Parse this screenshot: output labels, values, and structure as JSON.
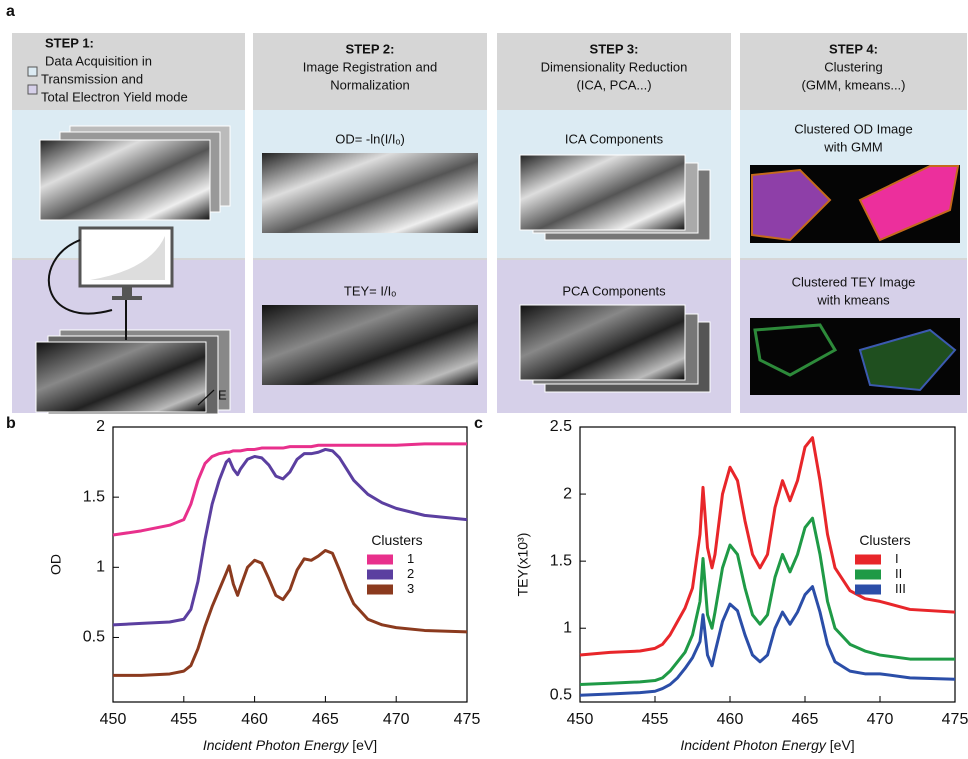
{
  "panel_labels": [
    "a",
    "b",
    "c"
  ],
  "energy_label": "E",
  "steps": [
    {
      "title": "STEP 1:",
      "lines": [
        "Data Acquisition in",
        "Transmission and",
        "Total Electron Yield mode"
      ],
      "top": [],
      "bottom": []
    },
    {
      "title": "STEP 2:",
      "lines": [
        "Image Registration and",
        "Normalization"
      ],
      "top": [
        "OD= -ln(I/Iₒ)"
      ],
      "bottom": [
        "TEY= I/Iₒ"
      ]
    },
    {
      "title": "STEP 3:",
      "lines": [
        "Dimensionality Reduction",
        "(ICA, PCA...)"
      ],
      "top": [
        "ICA Components"
      ],
      "bottom": [
        "PCA Components"
      ]
    },
    {
      "title": "STEP 4:",
      "lines": [
        "Clustering",
        "(GMM, kmeans...)"
      ],
      "top": [
        "Clustered OD Image",
        "with GMM"
      ],
      "bottom": [
        "Clustered TEY Image",
        "with kmeans"
      ]
    }
  ],
  "chart_data": [
    {
      "type": "line",
      "xlabel": "Incident Photon Energy",
      "xunit": "[eV]",
      "ylabel": "OD",
      "xlim": [
        450,
        475
      ],
      "xticks": [
        450,
        455,
        460,
        465,
        470,
        475
      ],
      "ylim": [
        0.04,
        2.0
      ],
      "yticks": [
        0.5,
        1.0,
        1.5,
        2.0
      ],
      "legend_title": "Clusters",
      "legend_loc": "center right",
      "x": [
        450,
        452,
        454,
        455,
        455.5,
        456,
        456.5,
        457,
        457.5,
        458,
        458.2,
        458.5,
        458.8,
        459,
        459.5,
        460,
        460.5,
        461,
        461.5,
        462,
        462.5,
        463,
        463.5,
        464,
        464.5,
        465,
        465.5,
        466,
        466.5,
        467,
        468,
        469,
        470,
        472,
        475
      ],
      "series": [
        {
          "name": "1",
          "color": "#e8308c",
          "values": [
            1.23,
            1.26,
            1.3,
            1.34,
            1.45,
            1.62,
            1.74,
            1.79,
            1.81,
            1.82,
            1.82,
            1.83,
            1.83,
            1.83,
            1.84,
            1.84,
            1.85,
            1.85,
            1.85,
            1.85,
            1.86,
            1.86,
            1.86,
            1.86,
            1.87,
            1.87,
            1.87,
            1.87,
            1.87,
            1.87,
            1.87,
            1.87,
            1.87,
            1.88,
            1.88
          ]
        },
        {
          "name": "2",
          "color": "#5b3fa0",
          "values": [
            0.59,
            0.6,
            0.61,
            0.63,
            0.7,
            0.9,
            1.2,
            1.45,
            1.62,
            1.75,
            1.77,
            1.7,
            1.66,
            1.7,
            1.77,
            1.79,
            1.78,
            1.73,
            1.65,
            1.63,
            1.68,
            1.77,
            1.81,
            1.81,
            1.82,
            1.84,
            1.83,
            1.78,
            1.7,
            1.62,
            1.52,
            1.46,
            1.42,
            1.37,
            1.34
          ]
        },
        {
          "name": "3",
          "color": "#8b3a1e",
          "values": [
            0.23,
            0.23,
            0.24,
            0.26,
            0.3,
            0.42,
            0.58,
            0.72,
            0.84,
            0.96,
            1.01,
            0.88,
            0.8,
            0.86,
            1.0,
            1.05,
            1.03,
            0.92,
            0.8,
            0.77,
            0.84,
            0.98,
            1.06,
            1.05,
            1.08,
            1.12,
            1.1,
            0.98,
            0.85,
            0.74,
            0.63,
            0.59,
            0.57,
            0.55,
            0.54
          ]
        }
      ]
    },
    {
      "type": "line",
      "xlabel": "Incident Photon Energy",
      "xunit": "[eV]",
      "ylabel": "TEY(x10³)",
      "xlim": [
        450,
        475
      ],
      "xticks": [
        450,
        455,
        460,
        465,
        470,
        475
      ],
      "ylim": [
        0.45,
        2.5
      ],
      "yticks": [
        0.5,
        1.0,
        1.5,
        2.0,
        2.5
      ],
      "legend_title": "Clusters",
      "legend_loc": "center right",
      "x": [
        450,
        452,
        454,
        455,
        455.5,
        456,
        456.5,
        457,
        457.5,
        458,
        458.2,
        458.5,
        458.8,
        459,
        459.5,
        460,
        460.5,
        461,
        461.5,
        462,
        462.5,
        463,
        463.5,
        464,
        464.5,
        465,
        465.5,
        466,
        466.5,
        467,
        468,
        469,
        470,
        472,
        475
      ],
      "series": [
        {
          "name": "I",
          "color": "#e8262a",
          "values": [
            0.8,
            0.82,
            0.83,
            0.85,
            0.88,
            0.95,
            1.05,
            1.15,
            1.3,
            1.7,
            2.05,
            1.6,
            1.45,
            1.55,
            2.0,
            2.2,
            2.1,
            1.8,
            1.55,
            1.45,
            1.55,
            1.9,
            2.1,
            1.95,
            2.1,
            2.35,
            2.42,
            2.1,
            1.7,
            1.45,
            1.28,
            1.22,
            1.2,
            1.14,
            1.12
          ]
        },
        {
          "name": "II",
          "color": "#1f9a46",
          "values": [
            0.58,
            0.59,
            0.6,
            0.61,
            0.63,
            0.68,
            0.75,
            0.82,
            0.95,
            1.2,
            1.52,
            1.1,
            1.0,
            1.12,
            1.45,
            1.62,
            1.55,
            1.3,
            1.1,
            1.03,
            1.1,
            1.38,
            1.55,
            1.42,
            1.55,
            1.75,
            1.82,
            1.55,
            1.2,
            1.0,
            0.88,
            0.83,
            0.8,
            0.77,
            0.77
          ]
        },
        {
          "name": "III",
          "color": "#2b4ea8",
          "values": [
            0.5,
            0.51,
            0.52,
            0.53,
            0.55,
            0.58,
            0.63,
            0.7,
            0.78,
            0.9,
            1.1,
            0.8,
            0.72,
            0.82,
            1.05,
            1.18,
            1.13,
            0.95,
            0.8,
            0.75,
            0.8,
            1.0,
            1.12,
            1.03,
            1.12,
            1.25,
            1.31,
            1.12,
            0.88,
            0.75,
            0.68,
            0.66,
            0.66,
            0.63,
            0.62
          ]
        }
      ]
    }
  ]
}
